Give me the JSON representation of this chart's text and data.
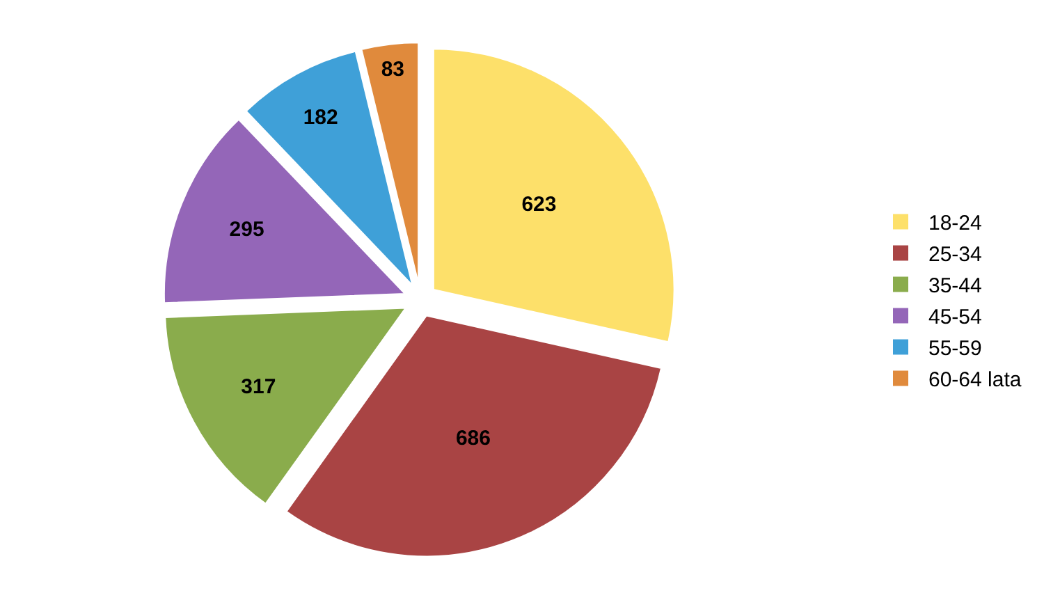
{
  "chart_data": {
    "type": "pie",
    "categories": [
      "18-24",
      "25-34",
      "35-44",
      "45-54",
      "55-59",
      "60-64 lata"
    ],
    "values": [
      623,
      686,
      317,
      295,
      182,
      83
    ],
    "colors": [
      "#fde06a",
      "#a94444",
      "#8aac4c",
      "#9466b8",
      "#3fa0d8",
      "#e08a3c"
    ],
    "data_labels": true,
    "legend": "right"
  }
}
